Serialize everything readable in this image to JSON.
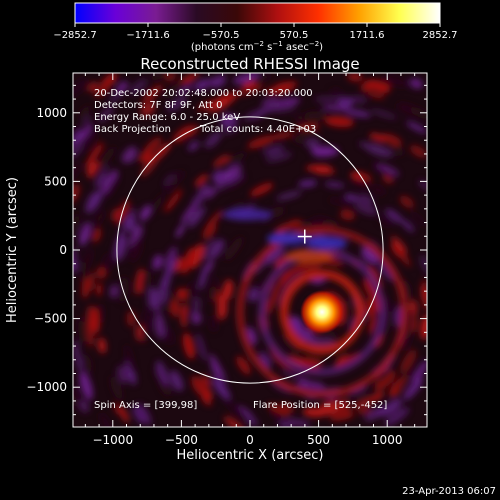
{
  "chart_data": {
    "type": "heatmap",
    "title": "Reconstructed RHESSI Image",
    "xlabel": "Heliocentric X (arcsec)",
    "ylabel": "Heliocentric Y (arcsec)",
    "xlim": [
      -1290,
      1290
    ],
    "ylim": [
      -1290,
      1290
    ],
    "x_ticks": [
      -1000,
      -500,
      0,
      500,
      1000
    ],
    "y_ticks": [
      -1000,
      -500,
      0,
      500,
      1000
    ],
    "x_tick_labels": [
      "−1000",
      "−500",
      "0",
      "500",
      "1000"
    ],
    "y_tick_labels": [
      "−1000",
      "−500",
      "0",
      "500",
      "1000"
    ],
    "colorbar": {
      "min": -2852.7,
      "max": 2852.7,
      "ticks": [
        -2852.7,
        -1711.6,
        -570.5,
        570.5,
        1711.6,
        2852.7
      ],
      "tick_labels": [
        "−2852.7",
        "−1711.6",
        "−570.5",
        "570.5",
        "1711.6",
        "2852.7"
      ],
      "unit_prefix": "(photons cm",
      "unit_exp1": "−2",
      "unit_mid": " s",
      "unit_exp2": "−1",
      "unit_mid2": " asec",
      "unit_exp3": "−2",
      "unit_suffix": ")",
      "colormap": [
        "#0000ff",
        "#6a00d8",
        "#7a1c92",
        "#2a0a24",
        "#3a0808",
        "#b01010",
        "#ff3000",
        "#ffa000",
        "#ffff50",
        "#ffffff"
      ]
    },
    "annotations": {
      "time_range": "20-Dec-2002 20:02:48.000 to 20:03:20.000",
      "detectors": "Detectors: 7F 8F 9F, Att 0",
      "energy": "Energy Range: 6.0 - 25.0 keV",
      "method": "Back Projection",
      "counts": "Total counts: 4.40E+03",
      "spin_axis": "Spin Axis = [399,98]",
      "flare_position": "Flare Position = [525,-452]"
    },
    "solar_limb_radius": 970,
    "marker_cross": [
      399,
      98
    ],
    "peak_source": {
      "x": 525,
      "y": -452
    }
  },
  "footer": {
    "timestamp": "23-Apr-2013 06:07"
  }
}
